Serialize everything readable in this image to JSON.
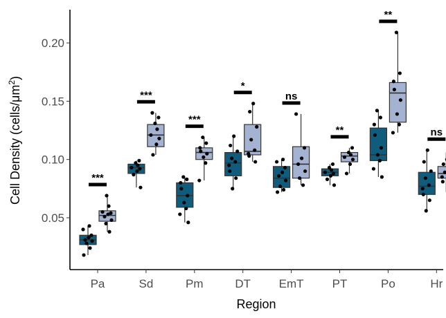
{
  "chart_data": {
    "type": "boxplot",
    "xlabel": "Region",
    "ylabel": "Cell Density (cells/μm²)",
    "ylabel_parts": {
      "main": "Cell Density (cells/",
      "unit": "μm",
      "sup": "2",
      "close": ")"
    },
    "ylim": [
      0.01,
      0.22
    ],
    "yticks": [
      0.05,
      0.1,
      0.15,
      0.2
    ],
    "ytick_labels": [
      "0.05",
      "0.10",
      "0.15",
      "0.20"
    ],
    "categories": [
      "Pa",
      "Sd",
      "Pm",
      "DT",
      "EmT",
      "PT",
      "Po",
      "Hr"
    ],
    "colors": {
      "group_a": "#0f5c7d",
      "group_b": "#a3b3d1"
    },
    "groups": [
      {
        "category": "Pa",
        "significance": "***",
        "boxes": [
          {
            "group": "a",
            "min": 0.018,
            "q1": 0.027,
            "median": 0.031,
            "q3": 0.035,
            "max": 0.043,
            "points": [
              0.018,
              0.024,
              0.028,
              0.03,
              0.031,
              0.033,
              0.035,
              0.04,
              0.043
            ]
          },
          {
            "group": "b",
            "min": 0.038,
            "q1": 0.047,
            "median": 0.052,
            "q3": 0.056,
            "max": 0.069,
            "points": [
              0.038,
              0.045,
              0.048,
              0.051,
              0.053,
              0.054,
              0.055,
              0.06,
              0.069
            ]
          }
        ]
      },
      {
        "category": "Sd",
        "significance": "***",
        "boxes": [
          {
            "group": "a",
            "min": 0.076,
            "q1": 0.088,
            "median": 0.093,
            "q3": 0.096,
            "max": 0.099,
            "points": [
              0.076,
              0.087,
              0.09,
              0.092,
              0.093,
              0.095,
              0.097,
              0.099
            ]
          },
          {
            "group": "b",
            "min": 0.104,
            "q1": 0.111,
            "median": 0.121,
            "q3": 0.13,
            "max": 0.14,
            "points": [
              0.104,
              0.113,
              0.118,
              0.121,
              0.126,
              0.131,
              0.136,
              0.14
            ]
          }
        ]
      },
      {
        "category": "Pm",
        "significance": "***",
        "boxes": [
          {
            "group": "a",
            "min": 0.046,
            "q1": 0.059,
            "median": 0.069,
            "q3": 0.08,
            "max": 0.085,
            "points": [
              0.046,
              0.053,
              0.058,
              0.063,
              0.069,
              0.075,
              0.08,
              0.083,
              0.085
            ]
          },
          {
            "group": "b",
            "min": 0.082,
            "q1": 0.1,
            "median": 0.106,
            "q3": 0.11,
            "max": 0.119,
            "points": [
              0.082,
              0.097,
              0.102,
              0.105,
              0.107,
              0.11,
              0.114,
              0.119
            ]
          }
        ]
      },
      {
        "category": "DT",
        "significance": "*",
        "boxes": [
          {
            "group": "a",
            "min": 0.075,
            "q1": 0.086,
            "median": 0.097,
            "q3": 0.106,
            "max": 0.12,
            "points": [
              0.075,
              0.084,
              0.09,
              0.095,
              0.098,
              0.101,
              0.107,
              0.112,
              0.12
            ]
          },
          {
            "group": "b",
            "min": 0.098,
            "q1": 0.104,
            "median": 0.107,
            "q3": 0.13,
            "max": 0.148,
            "points": [
              0.098,
              0.103,
              0.105,
              0.108,
              0.117,
              0.128,
              0.141,
              0.148
            ]
          }
        ]
      },
      {
        "category": "EmT",
        "significance": "ns",
        "boxes": [
          {
            "group": "a",
            "min": 0.072,
            "q1": 0.076,
            "median": 0.084,
            "q3": 0.094,
            "max": 0.1,
            "points": [
              0.072,
              0.074,
              0.077,
              0.082,
              0.086,
              0.089,
              0.093,
              0.098,
              0.1
            ]
          },
          {
            "group": "b",
            "min": 0.078,
            "q1": 0.084,
            "median": 0.096,
            "q3": 0.111,
            "max": 0.139,
            "points": [
              0.078,
              0.084,
              0.09,
              0.096,
              0.101,
              0.11,
              0.139
            ]
          }
        ]
      },
      {
        "category": "PT",
        "significance": "**",
        "boxes": [
          {
            "group": "a",
            "min": 0.078,
            "q1": 0.086,
            "median": 0.089,
            "q3": 0.092,
            "max": 0.096,
            "points": [
              0.078,
              0.083,
              0.086,
              0.088,
              0.089,
              0.091,
              0.093,
              0.096
            ]
          },
          {
            "group": "b",
            "min": 0.088,
            "q1": 0.098,
            "median": 0.103,
            "q3": 0.106,
            "max": 0.11,
            "points": [
              0.088,
              0.096,
              0.1,
              0.102,
              0.104,
              0.106,
              0.11
            ]
          }
        ]
      },
      {
        "category": "Po",
        "significance": "**",
        "boxes": [
          {
            "group": "a",
            "min": 0.085,
            "q1": 0.099,
            "median": 0.104,
            "q3": 0.127,
            "max": 0.142,
            "points": [
              0.085,
              0.092,
              0.099,
              0.104,
              0.11,
              0.121,
              0.13,
              0.136,
              0.142
            ]
          },
          {
            "group": "b",
            "min": 0.123,
            "q1": 0.132,
            "median": 0.157,
            "q3": 0.166,
            "max": 0.209,
            "points": [
              0.123,
              0.13,
              0.139,
              0.151,
              0.16,
              0.167,
              0.174,
              0.209
            ]
          }
        ]
      },
      {
        "category": "Hr",
        "significance": "ns",
        "boxes": [
          {
            "group": "a",
            "min": 0.056,
            "q1": 0.07,
            "median": 0.077,
            "q3": 0.089,
            "max": 0.108,
            "points": [
              0.056,
              0.065,
              0.07,
              0.075,
              0.078,
              0.084,
              0.09,
              0.098,
              0.108
            ]
          },
          {
            "group": "b",
            "min": 0.072,
            "q1": 0.084,
            "median": 0.088,
            "q3": 0.094,
            "max": 0.106,
            "points": [
              0.072,
              0.081,
              0.085,
              0.087,
              0.089,
              0.092,
              0.096,
              0.1,
              0.106
            ]
          }
        ]
      }
    ]
  }
}
